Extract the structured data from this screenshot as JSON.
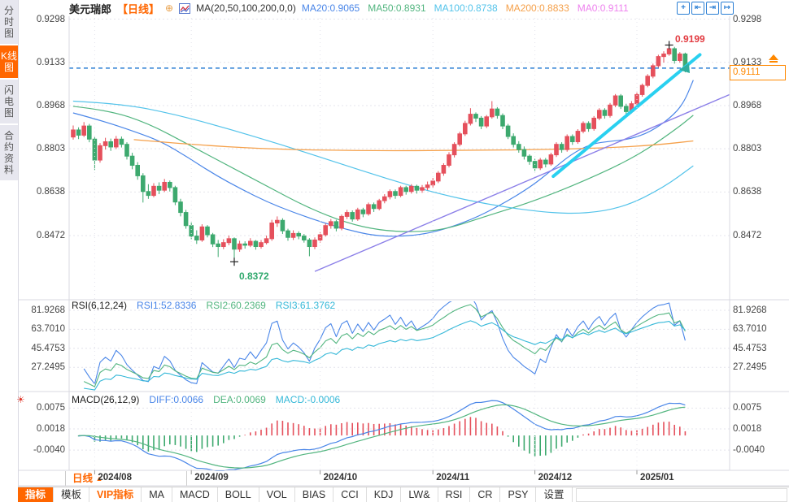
{
  "colors": {
    "accent_orange": "#ff6600",
    "up_red": "#e5505c",
    "down_green": "#3da96e",
    "ma20": "#4a86e8",
    "ma50": "#52b57f",
    "ma100": "#53c3ea",
    "ma200": "#f5a04a",
    "ma0_pink": "#ee82ee",
    "rsi1": "#4a86e8",
    "rsi2": "#52b57f",
    "rsi3": "#35b8d8",
    "diff_blue": "#4a86e8",
    "dea_green": "#52b57f",
    "macd_cyan": "#35b8d8",
    "dashed_price_line": "#2b7fd4",
    "rally_trendline": "#29d0f0",
    "support_trendline": "#8b7fe8",
    "grid": "#e4e4ec",
    "high_label": "#e23b41",
    "low_label": "#2fa86c",
    "last_price_tag": "#ff8800"
  },
  "sidebar": {
    "items": [
      {
        "label": "分时图",
        "active": false
      },
      {
        "label": "K线图",
        "active": true
      },
      {
        "label": "闪电图",
        "active": false
      },
      {
        "label": "合约资料",
        "active": false
      }
    ]
  },
  "header": {
    "symbol": "美元瑞郎",
    "period": "【日线】",
    "add_icon": "⊕",
    "ma_group": "MA(20,50,100,200,0,0)",
    "ma_values": [
      {
        "label": "MA20:0.9065",
        "color": "#4a86e8"
      },
      {
        "label": "MA50:0.8931",
        "color": "#52b57f"
      },
      {
        "label": "MA100:0.8738",
        "color": "#53c3ea"
      },
      {
        "label": "MA200:0.8833",
        "color": "#f5a04a"
      },
      {
        "label": "MA0:0.9111",
        "color": "#ee82ee"
      }
    ],
    "toolbar_icons": [
      {
        "name": "crosshair-icon",
        "glyph": "+"
      },
      {
        "name": "scale-left-axis-icon",
        "glyph": "⇤"
      },
      {
        "name": "scale-right-axis-icon",
        "glyph": "⇥"
      },
      {
        "name": "pan-right-icon",
        "glyph": "↦"
      }
    ]
  },
  "main_chart": {
    "y_axis_labels": [
      "0.9298",
      "0.9133",
      "0.8968",
      "0.8803",
      "0.8638",
      "0.8472"
    ],
    "y_axis_values": [
      0.9298,
      0.9133,
      0.8968,
      0.8803,
      0.8638,
      0.8472
    ],
    "high_label": "0.9199",
    "low_label": "0.8372",
    "last_price_label": "0.9111"
  },
  "rsi_panel": {
    "title": "RSI(6,12,24)",
    "values": [
      {
        "label": "RSI1:52.8336",
        "color": "#4a86e8"
      },
      {
        "label": "RSI2:60.2369",
        "color": "#52b57f"
      },
      {
        "label": "RSI3:61.3762",
        "color": "#35b8d8"
      }
    ],
    "y_axis_labels": [
      "81.9268",
      "63.7010",
      "45.4753",
      "27.2495"
    ],
    "y_axis_values": [
      81.9268,
      63.701,
      45.4753,
      27.2495
    ]
  },
  "macd_panel": {
    "title": "MACD(26,12,9)",
    "values": [
      {
        "label": "DIFF:0.0066",
        "color": "#4a86e8"
      },
      {
        "label": "DEA:0.0069",
        "color": "#52b57f"
      },
      {
        "label": "MACD:-0.0006",
        "color": "#35b8d8"
      }
    ],
    "y_axis_labels": [
      "0.0075",
      "0.0018",
      "-0.0040"
    ],
    "y_axis_values": [
      0.0075,
      0.0018,
      -0.004
    ]
  },
  "x_axis": {
    "period_label": "日线",
    "period_arrow": "▲",
    "dates": [
      "2024/08",
      "2024/09",
      "2024/10",
      "2024/11",
      "2024/12",
      "2025/01"
    ]
  },
  "bottom_tabs": [
    {
      "label": "指标",
      "style": "active"
    },
    {
      "label": "模板",
      "style": ""
    },
    {
      "label": "VIP指标",
      "style": "vip"
    },
    {
      "label": "MA",
      "style": ""
    },
    {
      "label": "MACD",
      "style": ""
    },
    {
      "label": "BOLL",
      "style": ""
    },
    {
      "label": "VOL",
      "style": ""
    },
    {
      "label": "BIAS",
      "style": ""
    },
    {
      "label": "CCI",
      "style": ""
    },
    {
      "label": "KDJ",
      "style": ""
    },
    {
      "label": "LW&",
      "style": ""
    },
    {
      "label": "RSI",
      "style": ""
    },
    {
      "label": "CR",
      "style": ""
    },
    {
      "label": "PSY",
      "style": ""
    },
    {
      "label": "设置",
      "style": ""
    }
  ],
  "hot_icon_glyph": "☀",
  "chart_data": {
    "type": "candlestick+indicators",
    "symbol": "美元瑞郎 (USD/CHF) 日线",
    "price_axis": {
      "top": 0.9298,
      "bottom": 0.8472
    },
    "tick_indices": [
      4,
      22,
      46,
      67,
      86,
      105
    ],
    "candles": [
      [
        0.8848,
        0.8892,
        0.8838,
        0.8875
      ],
      [
        0.8875,
        0.8885,
        0.884,
        0.8855
      ],
      [
        0.8855,
        0.8905,
        0.8848,
        0.889
      ],
      [
        0.889,
        0.8898,
        0.8828,
        0.884
      ],
      [
        0.884,
        0.8848,
        0.8722,
        0.876
      ],
      [
        0.876,
        0.8825,
        0.875,
        0.8815
      ],
      [
        0.8815,
        0.8845,
        0.88,
        0.883
      ],
      [
        0.883,
        0.8842,
        0.8795,
        0.881
      ],
      [
        0.881,
        0.8852,
        0.8802,
        0.884
      ],
      [
        0.884,
        0.885,
        0.8808,
        0.882
      ],
      [
        0.882,
        0.8828,
        0.8762,
        0.8775
      ],
      [
        0.8775,
        0.8788,
        0.8725,
        0.874
      ],
      [
        0.874,
        0.8752,
        0.8685,
        0.87
      ],
      [
        0.87,
        0.871,
        0.8598,
        0.864
      ],
      [
        0.864,
        0.8668,
        0.8612,
        0.8625
      ],
      [
        0.8625,
        0.8672,
        0.8618,
        0.866
      ],
      [
        0.866,
        0.8675,
        0.863,
        0.8645
      ],
      [
        0.8645,
        0.8688,
        0.8638,
        0.8675
      ],
      [
        0.8675,
        0.8682,
        0.864,
        0.8655
      ],
      [
        0.8655,
        0.8662,
        0.8588,
        0.86
      ],
      [
        0.86,
        0.8612,
        0.8545,
        0.856
      ],
      [
        0.856,
        0.857,
        0.8498,
        0.851
      ],
      [
        0.851,
        0.8522,
        0.8458,
        0.847
      ],
      [
        0.847,
        0.8492,
        0.844,
        0.8455
      ],
      [
        0.8455,
        0.8515,
        0.8448,
        0.8505
      ],
      [
        0.8505,
        0.8512,
        0.8465,
        0.8475
      ],
      [
        0.8475,
        0.8482,
        0.8428,
        0.844
      ],
      [
        0.844,
        0.8455,
        0.839,
        0.843
      ],
      [
        0.843,
        0.8458,
        0.842,
        0.8445
      ],
      [
        0.8445,
        0.8472,
        0.8435,
        0.846
      ],
      [
        0.846,
        0.8465,
        0.8372,
        0.842
      ],
      [
        0.842,
        0.8452,
        0.841,
        0.844
      ],
      [
        0.844,
        0.845,
        0.8422,
        0.8435
      ],
      [
        0.8435,
        0.8462,
        0.8428,
        0.845
      ],
      [
        0.845,
        0.8455,
        0.8418,
        0.843
      ],
      [
        0.843,
        0.8455,
        0.8422,
        0.8445
      ],
      [
        0.8445,
        0.8472,
        0.8438,
        0.846
      ],
      [
        0.846,
        0.8532,
        0.8452,
        0.852
      ],
      [
        0.852,
        0.8545,
        0.8505,
        0.853
      ],
      [
        0.853,
        0.8538,
        0.8478,
        0.849
      ],
      [
        0.849,
        0.8498,
        0.8452,
        0.8465
      ],
      [
        0.8465,
        0.8492,
        0.8455,
        0.848
      ],
      [
        0.848,
        0.8488,
        0.8458,
        0.847
      ],
      [
        0.847,
        0.8478,
        0.8445,
        0.8455
      ],
      [
        0.8455,
        0.8462,
        0.8393,
        0.843
      ],
      [
        0.843,
        0.8465,
        0.842,
        0.8455
      ],
      [
        0.8455,
        0.8485,
        0.8445,
        0.8475
      ],
      [
        0.8475,
        0.8518,
        0.8468,
        0.851
      ],
      [
        0.851,
        0.8535,
        0.8498,
        0.8525
      ],
      [
        0.8525,
        0.8532,
        0.8488,
        0.85
      ],
      [
        0.85,
        0.8552,
        0.8492,
        0.8545
      ],
      [
        0.8545,
        0.857,
        0.8535,
        0.856
      ],
      [
        0.856,
        0.8568,
        0.8525,
        0.8535
      ],
      [
        0.8535,
        0.8578,
        0.8528,
        0.857
      ],
      [
        0.857,
        0.8578,
        0.8542,
        0.8555
      ],
      [
        0.8555,
        0.8598,
        0.8548,
        0.859
      ],
      [
        0.859,
        0.8598,
        0.8562,
        0.8575
      ],
      [
        0.8575,
        0.8612,
        0.8568,
        0.8605
      ],
      [
        0.8605,
        0.863,
        0.8595,
        0.862
      ],
      [
        0.862,
        0.8648,
        0.861,
        0.864
      ],
      [
        0.864,
        0.8648,
        0.8612,
        0.8625
      ],
      [
        0.8625,
        0.8662,
        0.8618,
        0.8655
      ],
      [
        0.8655,
        0.8662,
        0.8628,
        0.864
      ],
      [
        0.864,
        0.8668,
        0.8632,
        0.866
      ],
      [
        0.866,
        0.8666,
        0.8632,
        0.8645
      ],
      [
        0.8645,
        0.8665,
        0.8635,
        0.8655
      ],
      [
        0.8655,
        0.8678,
        0.8645,
        0.8665
      ],
      [
        0.8665,
        0.8692,
        0.8655,
        0.868
      ],
      [
        0.868,
        0.8718,
        0.8672,
        0.871
      ],
      [
        0.871,
        0.8748,
        0.87,
        0.874
      ],
      [
        0.874,
        0.879,
        0.8732,
        0.878
      ],
      [
        0.878,
        0.8828,
        0.877,
        0.882
      ],
      [
        0.882,
        0.8868,
        0.8812,
        0.886
      ],
      [
        0.886,
        0.891,
        0.8852,
        0.89
      ],
      [
        0.89,
        0.8958,
        0.8892,
        0.8935
      ],
      [
        0.8935,
        0.8942,
        0.8905,
        0.892
      ],
      [
        0.892,
        0.8928,
        0.8878,
        0.889
      ],
      [
        0.889,
        0.8932,
        0.8882,
        0.8925
      ],
      [
        0.8925,
        0.8985,
        0.8918,
        0.8955
      ],
      [
        0.8955,
        0.8962,
        0.8918,
        0.893
      ],
      [
        0.893,
        0.8938,
        0.8878,
        0.889
      ],
      [
        0.889,
        0.8898,
        0.884,
        0.885
      ],
      [
        0.885,
        0.8862,
        0.8808,
        0.882
      ],
      [
        0.882,
        0.8832,
        0.8788,
        0.88
      ],
      [
        0.88,
        0.8812,
        0.8762,
        0.8775
      ],
      [
        0.8775,
        0.8782,
        0.8742,
        0.8755
      ],
      [
        0.8755,
        0.8765,
        0.8718,
        0.873
      ],
      [
        0.873,
        0.8768,
        0.8722,
        0.876
      ],
      [
        0.876,
        0.8768,
        0.8732,
        0.8745
      ],
      [
        0.8745,
        0.8788,
        0.8738,
        0.878
      ],
      [
        0.878,
        0.8828,
        0.8772,
        0.882
      ],
      [
        0.882,
        0.8828,
        0.8788,
        0.88
      ],
      [
        0.88,
        0.8858,
        0.8792,
        0.885
      ],
      [
        0.885,
        0.8858,
        0.8818,
        0.883
      ],
      [
        0.883,
        0.8878,
        0.8822,
        0.887
      ],
      [
        0.887,
        0.8908,
        0.8862,
        0.89
      ],
      [
        0.89,
        0.8908,
        0.8868,
        0.888
      ],
      [
        0.888,
        0.8928,
        0.8872,
        0.892
      ],
      [
        0.892,
        0.8958,
        0.8912,
        0.895
      ],
      [
        0.895,
        0.8958,
        0.8918,
        0.893
      ],
      [
        0.893,
        0.8978,
        0.8922,
        0.897
      ],
      [
        0.897,
        0.9012,
        0.8962,
        0.9005
      ],
      [
        0.9005,
        0.9012,
        0.8955,
        0.8965
      ],
      [
        0.8965,
        0.8975,
        0.8932,
        0.8945
      ],
      [
        0.8945,
        0.8985,
        0.8938,
        0.8975
      ],
      [
        0.8975,
        0.9018,
        0.8968,
        0.901
      ],
      [
        0.901,
        0.9052,
        0.9002,
        0.9045
      ],
      [
        0.9045,
        0.9088,
        0.9038,
        0.908
      ],
      [
        0.908,
        0.9128,
        0.9072,
        0.912
      ],
      [
        0.912,
        0.9162,
        0.9112,
        0.9155
      ],
      [
        0.9155,
        0.9175,
        0.9132,
        0.9165
      ],
      [
        0.9165,
        0.9199,
        0.9158,
        0.9185
      ],
      [
        0.9185,
        0.9192,
        0.9128,
        0.914
      ],
      [
        0.914,
        0.9172,
        0.9132,
        0.9165
      ],
      [
        0.9165,
        0.917,
        0.9095,
        0.9111
      ]
    ],
    "high_marker": {
      "index": 111,
      "price": 0.9199
    },
    "low_marker": {
      "index": 30,
      "price": 0.8372
    },
    "last_price": 0.9111,
    "ma_overlays": [
      {
        "name": "MA20",
        "color": "#4a86e8",
        "width": 1.2,
        "points": [
          [
            0.006,
            0.894
          ],
          [
            0.05,
            0.891
          ],
          [
            0.1,
            0.8868
          ],
          [
            0.14,
            0.883
          ],
          [
            0.18,
            0.877
          ],
          [
            0.22,
            0.8705
          ],
          [
            0.26,
            0.865
          ],
          [
            0.3,
            0.86
          ],
          [
            0.34,
            0.856
          ],
          [
            0.38,
            0.8525
          ],
          [
            0.42,
            0.8495
          ],
          [
            0.46,
            0.8472
          ],
          [
            0.5,
            0.8468
          ],
          [
            0.54,
            0.8478
          ],
          [
            0.58,
            0.8505
          ],
          [
            0.62,
            0.8545
          ],
          [
            0.66,
            0.8598
          ],
          [
            0.7,
            0.866
          ],
          [
            0.73,
            0.872
          ],
          [
            0.76,
            0.8782
          ],
          [
            0.79,
            0.8822
          ],
          [
            0.82,
            0.8832
          ],
          [
            0.85,
            0.884
          ],
          [
            0.88,
            0.8868
          ],
          [
            0.91,
            0.892
          ],
          [
            0.93,
            0.8975
          ],
          [
            0.945,
            0.9065
          ]
        ]
      },
      {
        "name": "MA50",
        "color": "#52b57f",
        "width": 1.2,
        "points": [
          [
            0.006,
            0.8965
          ],
          [
            0.06,
            0.895
          ],
          [
            0.12,
            0.89
          ],
          [
            0.18,
            0.882
          ],
          [
            0.24,
            0.874
          ],
          [
            0.3,
            0.866
          ],
          [
            0.36,
            0.858
          ],
          [
            0.42,
            0.852
          ],
          [
            0.47,
            0.8492
          ],
          [
            0.52,
            0.8485
          ],
          [
            0.57,
            0.8495
          ],
          [
            0.63,
            0.8545
          ],
          [
            0.7,
            0.86
          ],
          [
            0.78,
            0.868
          ],
          [
            0.86,
            0.8775
          ],
          [
            0.92,
            0.888
          ],
          [
            0.945,
            0.8931
          ]
        ]
      },
      {
        "name": "MA100",
        "color": "#53c3ea",
        "width": 1.2,
        "points": [
          [
            0.006,
            0.8985
          ],
          [
            0.08,
            0.8975
          ],
          [
            0.16,
            0.8935
          ],
          [
            0.24,
            0.888
          ],
          [
            0.32,
            0.882
          ],
          [
            0.4,
            0.8755
          ],
          [
            0.48,
            0.869
          ],
          [
            0.56,
            0.863
          ],
          [
            0.64,
            0.8588
          ],
          [
            0.72,
            0.856
          ],
          [
            0.78,
            0.8555
          ],
          [
            0.84,
            0.858
          ],
          [
            0.9,
            0.8655
          ],
          [
            0.945,
            0.8738
          ]
        ]
      },
      {
        "name": "MA200",
        "color": "#f5a04a",
        "width": 1.3,
        "points": [
          [
            0.098,
            0.8838
          ],
          [
            0.18,
            0.882
          ],
          [
            0.3,
            0.8802
          ],
          [
            0.45,
            0.8795
          ],
          [
            0.6,
            0.8797
          ],
          [
            0.72,
            0.88
          ],
          [
            0.82,
            0.8807
          ],
          [
            0.89,
            0.8818
          ],
          [
            0.945,
            0.8833
          ]
        ]
      }
    ],
    "trendlines": [
      {
        "name": "support-trendline",
        "color": "#8b7fe8",
        "width": 1.4,
        "points": [
          [
            0.372,
            0.8335
          ],
          [
            1.0,
            0.901
          ]
        ]
      },
      {
        "name": "rally-trendline",
        "color": "#29d0f0",
        "width": 4,
        "points": [
          [
            0.733,
            0.8698
          ],
          [
            0.955,
            0.9162
          ]
        ]
      }
    ],
    "rsi": {
      "periods": [
        6,
        12,
        24
      ],
      "colors": [
        "#4a86e8",
        "#52b57f",
        "#35b8d8"
      ],
      "axis": [
        81.9268,
        63.701,
        45.4753,
        27.2495
      ]
    },
    "macd": {
      "fast": 12,
      "slow": 26,
      "signal": 9,
      "diff_color": "#4a86e8",
      "dea_color": "#52b57f",
      "axis": [
        0.0075,
        0.0018,
        -0.004
      ]
    }
  }
}
